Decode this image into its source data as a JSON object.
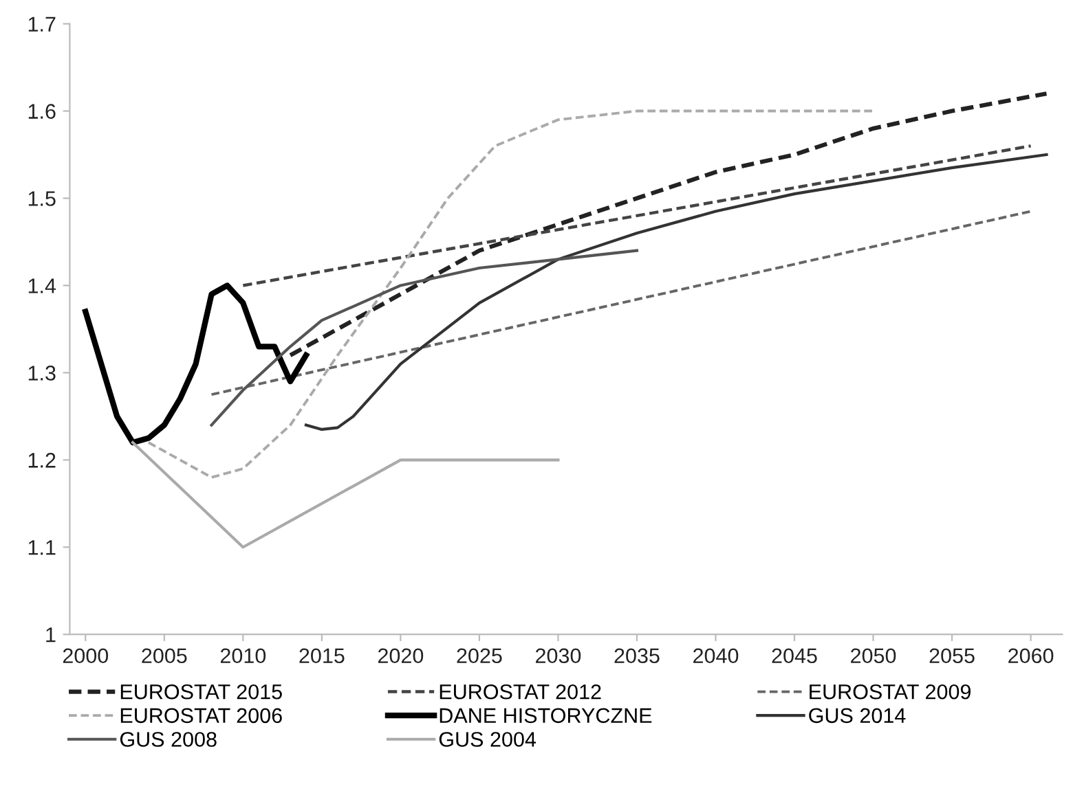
{
  "chart_data": {
    "type": "line",
    "xlim": [
      1999,
      2062
    ],
    "xticks": [
      2000,
      2005,
      2010,
      2015,
      2020,
      2025,
      2030,
      2035,
      2040,
      2045,
      2050,
      2055,
      2060
    ],
    "ylim": [
      1,
      1.7
    ],
    "yticks": [
      1,
      1.1,
      1.2,
      1.3,
      1.4,
      1.5,
      1.6,
      1.7
    ],
    "grid": false,
    "legend": "bottom",
    "marker": "none",
    "series": [
      {
        "name": "EUROSTAT 2015",
        "color": "#222222",
        "line_style": "dashed",
        "x": [
          2013,
          2015,
          2020,
          2025,
          2030,
          2035,
          2040,
          2045,
          2050,
          2055,
          2061
        ],
        "values": [
          1.32,
          1.34,
          1.39,
          1.44,
          1.47,
          1.5,
          1.53,
          1.55,
          1.58,
          1.6,
          1.62
        ]
      },
      {
        "name": "EUROSTAT 2012",
        "color": "#444444",
        "line_style": "dashed",
        "x": [
          2010,
          2060
        ],
        "values": [
          1.4,
          1.56
        ]
      },
      {
        "name": "EUROSTAT 2009",
        "color": "#666666",
        "line_style": "dashed",
        "x": [
          2008,
          2060
        ],
        "values": [
          1.275,
          1.485
        ]
      },
      {
        "name": "EUROSTAT 2006",
        "color": "#aaaaaa",
        "line_style": "dashed",
        "x": [
          2004,
          2008,
          2010,
          2013,
          2016,
          2020,
          2023,
          2026,
          2030,
          2035,
          2050
        ],
        "values": [
          1.22,
          1.18,
          1.19,
          1.24,
          1.32,
          1.42,
          1.5,
          1.56,
          1.59,
          1.6,
          1.6
        ]
      },
      {
        "name": "DANE HISTORYCZNE",
        "color": "#000000",
        "line_style": "solid",
        "x": [
          2000,
          2001,
          2002,
          2003,
          2004,
          2005,
          2006,
          2007,
          2008,
          2009,
          2010,
          2011,
          2012,
          2013,
          2014
        ],
        "values": [
          1.37,
          1.31,
          1.25,
          1.22,
          1.225,
          1.24,
          1.27,
          1.31,
          1.39,
          1.4,
          1.38,
          1.33,
          1.33,
          1.29,
          1.32
        ]
      },
      {
        "name": "GUS 2014",
        "color": "#333333",
        "line_style": "solid",
        "x": [
          2014,
          2015,
          2016,
          2017,
          2020,
          2025,
          2030,
          2035,
          2040,
          2045,
          2050,
          2055,
          2061
        ],
        "values": [
          1.24,
          1.235,
          1.237,
          1.25,
          1.31,
          1.38,
          1.43,
          1.46,
          1.485,
          1.505,
          1.52,
          1.535,
          1.55
        ]
      },
      {
        "name": "GUS 2008",
        "color": "#555555",
        "line_style": "solid",
        "x": [
          2008,
          2010,
          2013,
          2015,
          2020,
          2025,
          2030,
          2035
        ],
        "values": [
          1.24,
          1.28,
          1.33,
          1.36,
          1.4,
          1.42,
          1.43,
          1.44
        ]
      },
      {
        "name": "GUS 2004",
        "color": "#aaaaaa",
        "line_style": "solid",
        "x": [
          2003,
          2010,
          2020,
          2030
        ],
        "values": [
          1.22,
          1.1,
          1.2,
          1.2
        ]
      }
    ]
  }
}
